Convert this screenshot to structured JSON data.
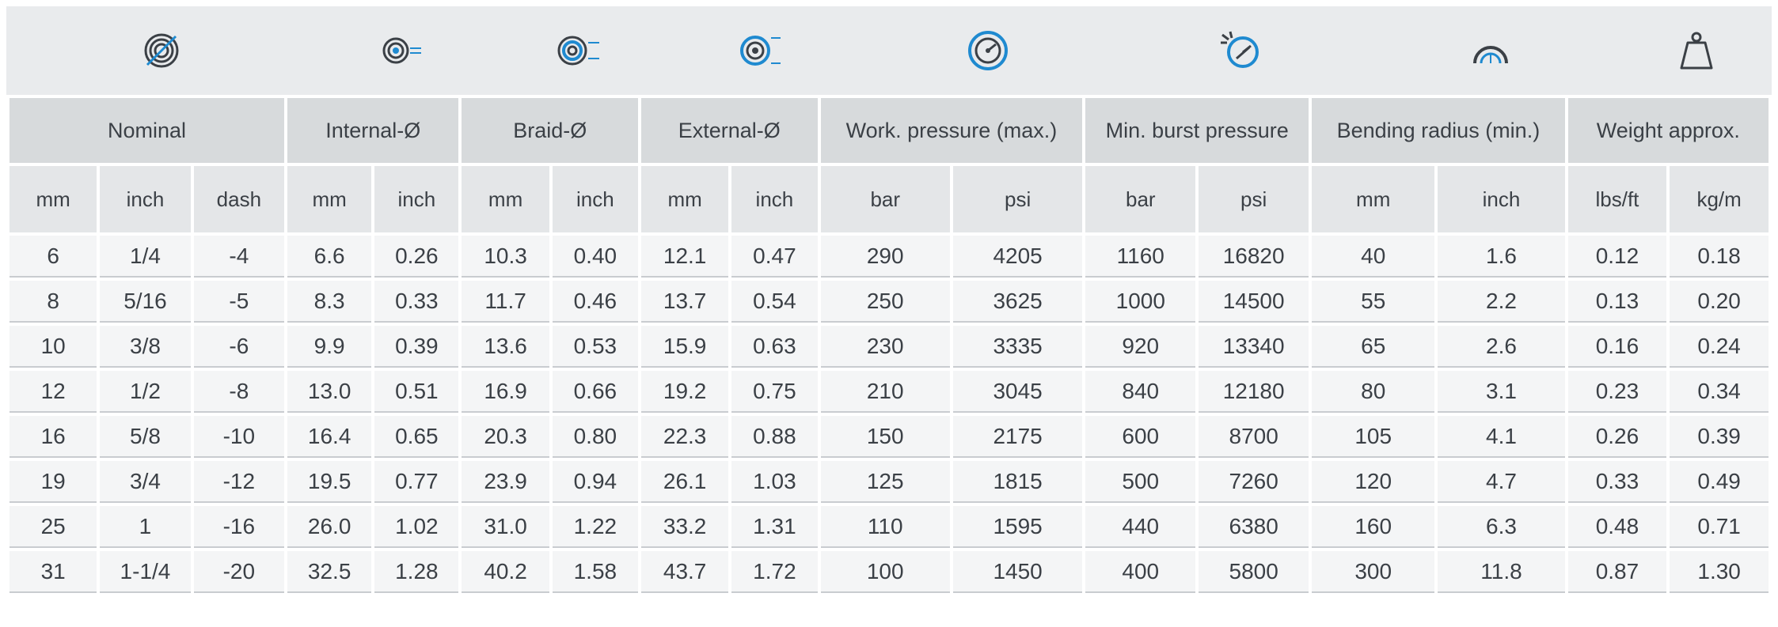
{
  "icons": [
    {
      "name": "nominal-size-icon"
    },
    {
      "name": "internal-diameter-icon"
    },
    {
      "name": "braid-diameter-icon"
    },
    {
      "name": "external-diameter-icon"
    },
    {
      "name": "working-pressure-icon"
    },
    {
      "name": "burst-pressure-icon"
    },
    {
      "name": "bending-radius-icon"
    },
    {
      "name": "weight-icon"
    }
  ],
  "groups": [
    {
      "label": "Nominal",
      "span": 3
    },
    {
      "label": "Internal-Ø",
      "span": 2
    },
    {
      "label": "Braid-Ø",
      "span": 2
    },
    {
      "label": "External-Ø",
      "span": 2
    },
    {
      "label": "Work. pressure (max.)",
      "span": 2
    },
    {
      "label": "Min. burst pressure",
      "span": 2
    },
    {
      "label": "Bending radius (min.)",
      "span": 2
    },
    {
      "label": "Weight approx.",
      "span": 2
    }
  ],
  "units": [
    "mm",
    "inch",
    "dash",
    "mm",
    "inch",
    "mm",
    "inch",
    "mm",
    "inch",
    "bar",
    "psi",
    "bar",
    "psi",
    "mm",
    "inch",
    "lbs/ft",
    "kg/m"
  ],
  "rows": [
    [
      "6",
      "1/4",
      "-4",
      "6.6",
      "0.26",
      "10.3",
      "0.40",
      "12.1",
      "0.47",
      "290",
      "4205",
      "1160",
      "16820",
      "40",
      "1.6",
      "0.12",
      "0.18"
    ],
    [
      "8",
      "5/16",
      "-5",
      "8.3",
      "0.33",
      "11.7",
      "0.46",
      "13.7",
      "0.54",
      "250",
      "3625",
      "1000",
      "14500",
      "55",
      "2.2",
      "0.13",
      "0.20"
    ],
    [
      "10",
      "3/8",
      "-6",
      "9.9",
      "0.39",
      "13.6",
      "0.53",
      "15.9",
      "0.63",
      "230",
      "3335",
      "920",
      "13340",
      "65",
      "2.6",
      "0.16",
      "0.24"
    ],
    [
      "12",
      "1/2",
      "-8",
      "13.0",
      "0.51",
      "16.9",
      "0.66",
      "19.2",
      "0.75",
      "210",
      "3045",
      "840",
      "12180",
      "80",
      "3.1",
      "0.23",
      "0.34"
    ],
    [
      "16",
      "5/8",
      "-10",
      "16.4",
      "0.65",
      "20.3",
      "0.80",
      "22.3",
      "0.88",
      "150",
      "2175",
      "600",
      "8700",
      "105",
      "4.1",
      "0.26",
      "0.39"
    ],
    [
      "19",
      "3/4",
      "-12",
      "19.5",
      "0.77",
      "23.9",
      "0.94",
      "26.1",
      "1.03",
      "125",
      "1815",
      "500",
      "7260",
      "120",
      "4.7",
      "0.33",
      "0.49"
    ],
    [
      "25",
      "1",
      "-16",
      "26.0",
      "1.02",
      "31.0",
      "1.22",
      "33.2",
      "1.31",
      "110",
      "1595",
      "440",
      "6380",
      "160",
      "6.3",
      "0.48",
      "0.71"
    ],
    [
      "31",
      "1-1/4",
      "-20",
      "32.5",
      "1.28",
      "40.2",
      "1.58",
      "43.7",
      "1.72",
      "100",
      "1450",
      "400",
      "5800",
      "300",
      "11.8",
      "0.87",
      "1.30"
    ]
  ],
  "colors": {
    "accent": "#1f8ad0",
    "header_bg": "#d7dadc",
    "unit_bg": "#e4e6e8",
    "row_bg": "#f4f5f6",
    "icon_bg": "#e9ebed",
    "text": "#3b4046"
  }
}
